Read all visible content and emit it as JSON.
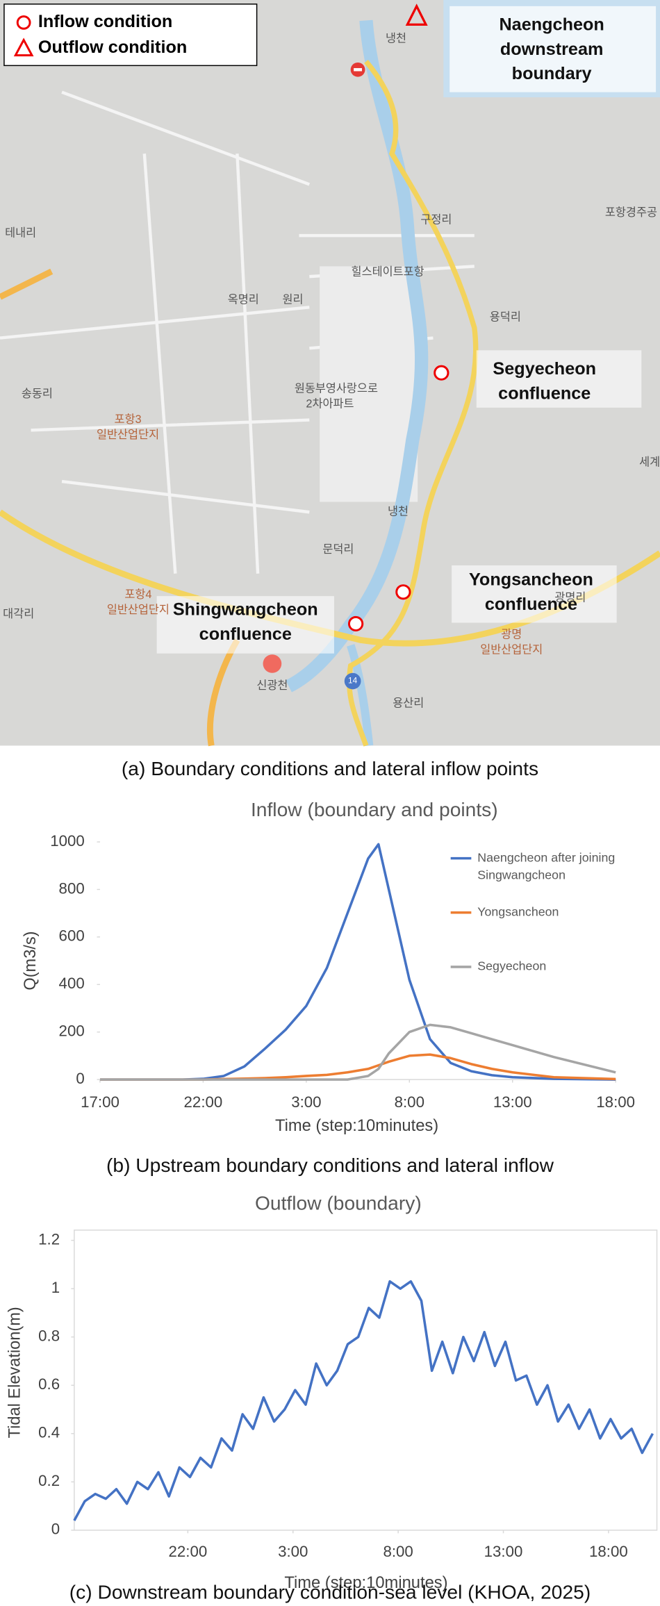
{
  "map": {
    "legend": [
      "Inflow condition",
      "Outflow condition"
    ],
    "callouts": [
      [
        "Naengcheon",
        "downstream",
        "boundary"
      ],
      [
        "Segyecheon",
        "confluence"
      ],
      [
        "Yongsancheon",
        "confluence"
      ],
      [
        "Shingwangcheon",
        "confluence"
      ]
    ],
    "places": [
      "냉천",
      "구정리",
      "포항경주공",
      "테내리",
      "힐스테이트포항",
      "옥명리",
      "원리",
      "용덕리",
      "원동부영사랑으로",
      "2차아파트",
      "송동리",
      "포항3",
      "일반산업단지",
      "냉천",
      "세계",
      "문덕리",
      "포항4",
      "일반산업단지",
      "광명리",
      "대각리",
      "광명",
      "일반산업단지",
      "신광천",
      "14",
      "용산리"
    ]
  },
  "captions": [
    "(a) Boundary conditions and lateral inflow points",
    "(b) Upstream boundary conditions and lateral inflow",
    "(c) Downstream boundary condition-sea level (KHOA, 2025)"
  ],
  "chart_data": [
    {
      "type": "line",
      "title": "Inflow (boundary and points)",
      "x_label": "Time (step:10minutes)",
      "y_label": "Q(m3/s)",
      "x": [
        0,
        4,
        5,
        6,
        7,
        8,
        9,
        10,
        11,
        12,
        13,
        13.5,
        14,
        15,
        16,
        17,
        18,
        19,
        20,
        22,
        25
      ],
      "series": [
        {
          "name": "Naengcheon after joining Singwangcheon",
          "color": "#4472c4",
          "values": [
            0,
            0,
            3,
            15,
            55,
            130,
            210,
            310,
            470,
            700,
            930,
            990,
            800,
            420,
            170,
            70,
            35,
            18,
            10,
            3,
            0
          ]
        },
        {
          "name": "Yongsancheon",
          "color": "#ed7d31",
          "values": [
            0,
            0,
            0,
            2,
            4,
            6,
            10,
            15,
            20,
            30,
            45,
            60,
            75,
            100,
            105,
            90,
            65,
            45,
            30,
            10,
            2
          ]
        },
        {
          "name": "Segyecheon",
          "color": "#a5a5a5",
          "values": [
            0,
            0,
            0,
            0,
            0,
            0,
            0,
            0,
            0,
            0,
            15,
            45,
            110,
            200,
            230,
            220,
            195,
            170,
            145,
            95,
            30
          ]
        }
      ],
      "xlim": [
        0,
        25
      ],
      "xticks": [
        {
          "value": 0,
          "label": "17:00"
        },
        {
          "value": 5,
          "label": "22:00"
        },
        {
          "value": 10,
          "label": "3:00"
        },
        {
          "value": 15,
          "label": "8:00"
        },
        {
          "value": 20,
          "label": "13:00"
        },
        {
          "value": 25,
          "label": "18:00"
        }
      ],
      "ylim": [
        0,
        1000
      ],
      "yticks": [
        0,
        200,
        400,
        600,
        800,
        1000
      ],
      "grid": false,
      "legend": "right"
    },
    {
      "type": "line",
      "title": "Outflow (boundary)",
      "x_label": "Time (step:10minutes)",
      "y_label": "Tidal Elevation(m)",
      "x": [
        -0.4,
        0.1,
        0.6,
        1.1,
        1.6,
        2.1,
        2.6,
        3.1,
        3.6,
        4.1,
        4.6,
        5.1,
        5.6,
        6.1,
        6.6,
        7.1,
        7.6,
        8.1,
        8.6,
        9.1,
        9.6,
        10.1,
        10.6,
        11.1,
        11.6,
        12.1,
        12.6,
        13.1,
        13.6,
        14.1,
        14.6,
        15.1,
        15.6,
        16.1,
        16.6,
        17.1,
        17.6,
        18.1,
        18.6,
        19.1,
        19.6,
        20.1,
        20.6,
        21.1,
        21.6,
        22.1,
        22.6,
        23.1,
        23.6,
        24.1,
        24.6,
        25.1,
        25.6,
        26.1,
        26.6,
        27.1
      ],
      "values": [
        0.04,
        0.12,
        0.15,
        0.13,
        0.17,
        0.11,
        0.2,
        0.17,
        0.24,
        0.14,
        0.26,
        0.22,
        0.3,
        0.26,
        0.38,
        0.33,
        0.48,
        0.42,
        0.55,
        0.45,
        0.5,
        0.58,
        0.52,
        0.69,
        0.6,
        0.66,
        0.77,
        0.8,
        0.92,
        0.88,
        1.03,
        1.0,
        1.03,
        0.95,
        0.66,
        0.78,
        0.65,
        0.8,
        0.7,
        0.82,
        0.68,
        0.78,
        0.62,
        0.64,
        0.52,
        0.6,
        0.45,
        0.52,
        0.42,
        0.5,
        0.38,
        0.46,
        0.38,
        0.42,
        0.32,
        0.4
      ],
      "color": "#4472c4",
      "xlim": [
        -0.4,
        27.3
      ],
      "xticks": [
        {
          "value": 5,
          "label": "22:00"
        },
        {
          "value": 10,
          "label": "3:00"
        },
        {
          "value": 15,
          "label": "8:00"
        },
        {
          "value": 20,
          "label": "13:00"
        },
        {
          "value": 25,
          "label": "18:00"
        }
      ],
      "ylim": [
        0,
        1.2
      ],
      "yticks": [
        0,
        0.2,
        0.4,
        0.6,
        0.8,
        1,
        1.2
      ],
      "grid": false
    }
  ]
}
